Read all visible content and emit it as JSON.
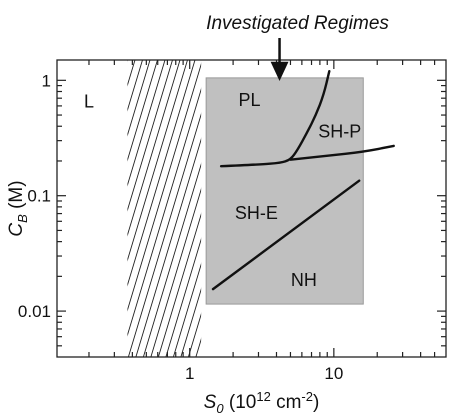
{
  "chart_data": {
    "type": "line",
    "xlabel": {
      "symbol": "S",
      "subscript": "0",
      "unit_prefix": " (10",
      "unit_exp": "12",
      "unit_mid": " cm",
      "unit_exp2": "-2",
      "unit_suffix": ")"
    },
    "ylabel": {
      "symbol": "C",
      "subscript": "B",
      "unit": " (M)"
    },
    "x_scale": "log",
    "y_scale": "log",
    "xlim": [
      0.12,
      60
    ],
    "ylim": [
      0.004,
      1.5
    ],
    "x_ticks": [
      {
        "value": 1,
        "label": "1"
      },
      {
        "value": 10,
        "label": "10"
      }
    ],
    "y_ticks": [
      {
        "value": 1,
        "label": "1"
      },
      {
        "value": 0.1,
        "label": "0.1"
      },
      {
        "value": 0.01,
        "label": "0.01"
      }
    ],
    "hatched_band": {
      "x_from": 0.37,
      "x_to": 1.2
    },
    "investigated_box": {
      "x_from": 1.3,
      "x_to": 16,
      "y_from": 0.0115,
      "y_to": 1.05
    },
    "annotation": {
      "text": "Investigated Regimes",
      "arrow_at_x": 4.2
    },
    "region_labels": [
      {
        "text": "L",
        "x": 0.2,
        "y": 0.58
      },
      {
        "text": "PL",
        "x": 2.6,
        "y": 0.6
      },
      {
        "text": "SH-P",
        "x": 11,
        "y": 0.32
      },
      {
        "text": "SH-E",
        "x": 2.9,
        "y": 0.063
      },
      {
        "text": "NH",
        "x": 6.2,
        "y": 0.0165
      }
    ],
    "boundary_lines": [
      {
        "points": [
          [
            1.65,
            0.18
          ],
          [
            3.0,
            0.186
          ],
          [
            4.3,
            0.193
          ],
          [
            5.0,
            0.205
          ],
          [
            5.6,
            0.25
          ],
          [
            6.5,
            0.35
          ],
          [
            7.5,
            0.5
          ],
          [
            8.5,
            0.75
          ],
          [
            9.3,
            1.2
          ]
        ]
      },
      {
        "points": [
          [
            5.0,
            0.205
          ],
          [
            9.0,
            0.222
          ],
          [
            16,
            0.24
          ],
          [
            26,
            0.27
          ]
        ]
      },
      {
        "points": [
          [
            1.45,
            0.0155
          ],
          [
            15,
            0.135
          ]
        ]
      }
    ]
  }
}
